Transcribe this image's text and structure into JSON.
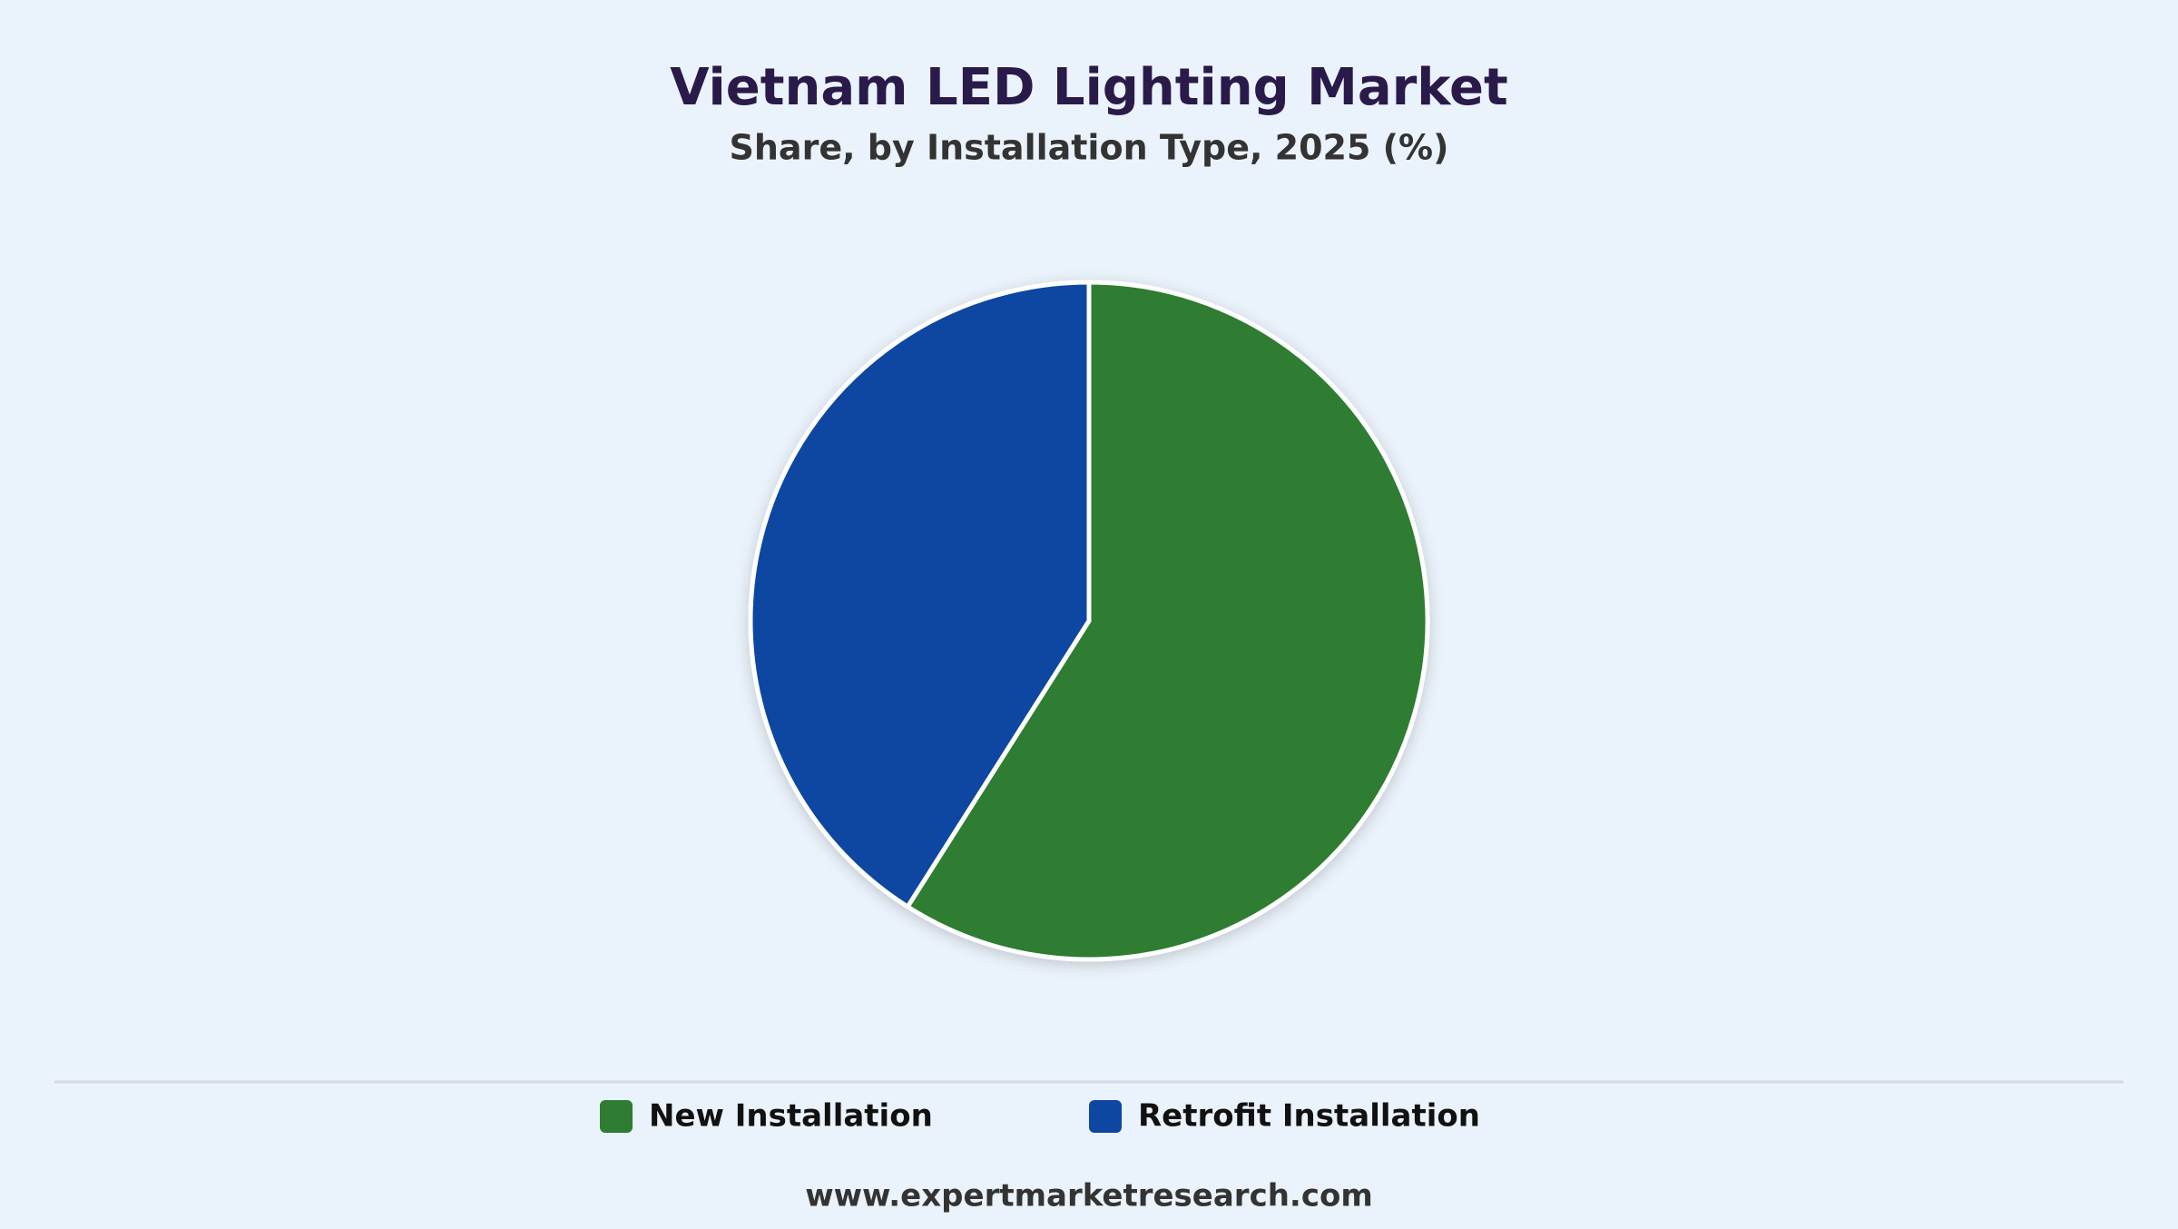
{
  "chart_data": {
    "type": "pie",
    "title": "Vietnam LED Lighting Market",
    "subtitle": "Share, by Installation Type, 2025 (%)",
    "categories": [
      "New Installation",
      "Retrofit Installation"
    ],
    "values": [
      59,
      41
    ],
    "colors": [
      "#2e7d32",
      "#0d47a1"
    ],
    "legend": "bottom",
    "footer": "www.expertmarketresearch.com"
  }
}
